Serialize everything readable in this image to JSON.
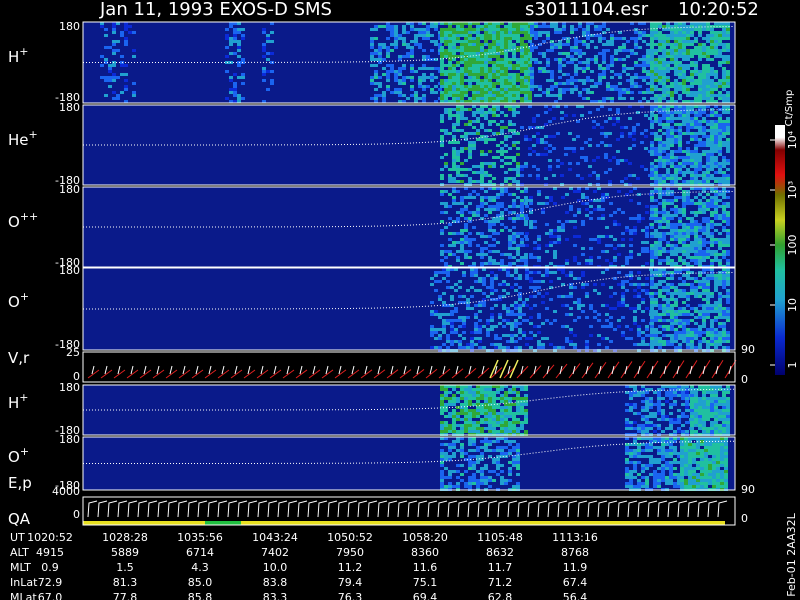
{
  "header": {
    "title": "Jan 11, 1993   EXOS-D SMS",
    "file": "s3011104.esr",
    "time": "10:20:52"
  },
  "panels": [
    {
      "ion": "H",
      "charge": "+",
      "ticks": [
        "180",
        "-180"
      ]
    },
    {
      "ion": "He",
      "charge": "+",
      "ticks": [
        "180",
        "-180"
      ]
    },
    {
      "ion": "O",
      "charge": "++",
      "ticks": [
        "180",
        "-180"
      ]
    },
    {
      "ion": "O",
      "charge": "+",
      "ticks": [
        "180",
        "-180"
      ]
    },
    {
      "ion": "V,r",
      "charge": "",
      "ticks": [
        "25",
        "0"
      ],
      "right_ticks": [
        "90",
        "0"
      ]
    },
    {
      "ion": "H",
      "charge": "+",
      "ticks": [
        "180",
        "-180"
      ]
    },
    {
      "ion": "O",
      "charge": "+",
      "ticks": [
        "180",
        "-180"
      ],
      "right_ticks": [
        "90"
      ]
    },
    {
      "ion": "E,p",
      "charge": "",
      "ticks": [
        "4000",
        "0"
      ],
      "right_ticks": [
        "0"
      ]
    }
  ],
  "qa_label": "QA",
  "colorbar": {
    "unit": "Ct/Smp",
    "ticks": [
      "10⁴",
      "10³",
      "100",
      "10",
      "1"
    ]
  },
  "footer_note": "Feb-01 2AA32L",
  "table": {
    "rows": [
      [
        "UT",
        "1020:52",
        "1028:28",
        "1035:56",
        "1043:24",
        "1050:52",
        "1058:20",
        "1105:48",
        "1113:16"
      ],
      [
        "ALT",
        "4915",
        "5889",
        "6714",
        "7402",
        "7950",
        "8360",
        "8632",
        "8768"
      ],
      [
        "MLT",
        "0.9",
        "1.5",
        "4.3",
        "10.0",
        "11.2",
        "11.6",
        "11.7",
        "11.9"
      ],
      [
        "InLat",
        "72.9",
        "81.3",
        "85.0",
        "83.8",
        "79.4",
        "75.1",
        "71.2",
        "67.4"
      ],
      [
        "MLat",
        "67.0",
        "77.8",
        "85.8",
        "83.3",
        "76.3",
        "69.4",
        "62.8",
        "56.4"
      ]
    ]
  }
}
